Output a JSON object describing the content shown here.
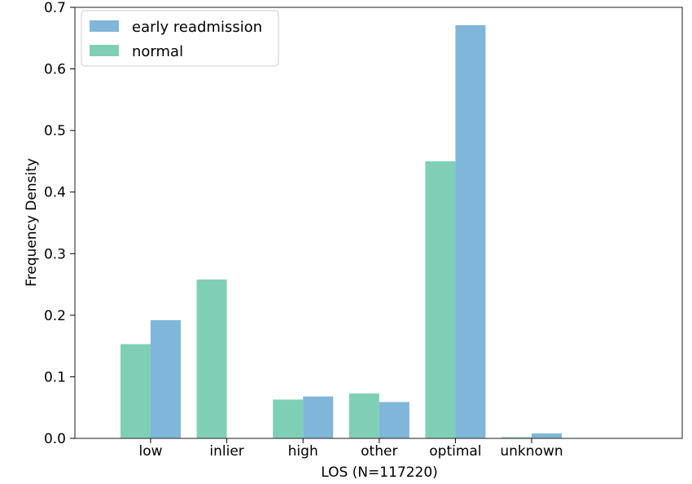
{
  "chart_data": {
    "type": "bar",
    "categories": [
      "low",
      "inlier",
      "high",
      "other",
      "optimal",
      "unknown"
    ],
    "series": [
      {
        "name": "normal",
        "color": "#7fcfb6",
        "values": [
          0.153,
          0.258,
          0.063,
          0.073,
          0.45,
          0.002
        ]
      },
      {
        "name": "early readmission",
        "color": "#7fb6d9",
        "values": [
          0.192,
          0.0,
          0.068,
          0.059,
          0.671,
          0.008
        ]
      }
    ],
    "xlabel": "LOS (N=117220)",
    "ylabel": "Frequency Density",
    "ylim": [
      0,
      0.7
    ],
    "yticks": [
      "0.0",
      "0.1",
      "0.2",
      "0.3",
      "0.4",
      "0.5",
      "0.6",
      "0.7"
    ],
    "legend": {
      "position": "top-left",
      "entries": [
        {
          "label": "early readmission",
          "color": "#7fb6d9"
        },
        {
          "label": "normal",
          "color": "#7fcfb6"
        }
      ]
    },
    "grid": false
  }
}
